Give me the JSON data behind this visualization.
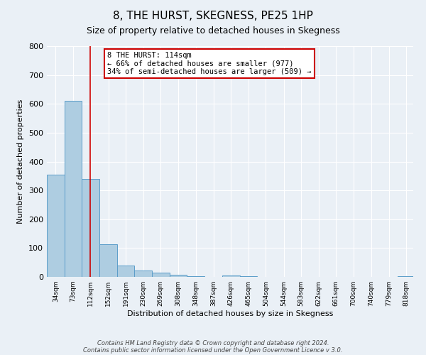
{
  "title": "8, THE HURST, SKEGNESS, PE25 1HP",
  "subtitle": "Size of property relative to detached houses in Skegness",
  "xlabel": "Distribution of detached houses by size in Skegness",
  "ylabel": "Number of detached properties",
  "bar_color": "#aecde1",
  "bar_edge_color": "#5b9dc9",
  "bg_color": "#eaf0f6",
  "grid_color": "#ffffff",
  "vline_x": 112,
  "vline_color": "#cc0000",
  "bin_edges": [
    14.5,
    53.5,
    92.5,
    131.5,
    170.5,
    209.5,
    248.5,
    287.5,
    326.5,
    365.5,
    404.5,
    443.5,
    482.5,
    521.5,
    560.5,
    599.5,
    638.5,
    677.5,
    716.5,
    755.5,
    794.5,
    833.5
  ],
  "bin_heights": [
    355,
    610,
    340,
    113,
    40,
    22,
    14,
    8,
    2,
    0,
    5,
    2,
    0,
    0,
    0,
    0,
    0,
    0,
    0,
    0,
    3
  ],
  "xtick_labels": [
    "34sqm",
    "73sqm",
    "112sqm",
    "152sqm",
    "191sqm",
    "230sqm",
    "269sqm",
    "308sqm",
    "348sqm",
    "387sqm",
    "426sqm",
    "465sqm",
    "504sqm",
    "544sqm",
    "583sqm",
    "622sqm",
    "661sqm",
    "700sqm",
    "740sqm",
    "779sqm",
    "818sqm"
  ],
  "xtick_positions": [
    34,
    73,
    112,
    152,
    191,
    230,
    269,
    308,
    348,
    387,
    426,
    465,
    504,
    544,
    583,
    622,
    661,
    700,
    740,
    779,
    818
  ],
  "xlim": [
    14.5,
    833.5
  ],
  "ylim": [
    0,
    800
  ],
  "yticks": [
    0,
    100,
    200,
    300,
    400,
    500,
    600,
    700,
    800
  ],
  "annotation_text": "8 THE HURST: 114sqm\n← 66% of detached houses are smaller (977)\n34% of semi-detached houses are larger (509) →",
  "annotation_box_color": "#ffffff",
  "annotation_box_edge_color": "#cc0000",
  "footer_line1": "Contains HM Land Registry data © Crown copyright and database right 2024.",
  "footer_line2": "Contains public sector information licensed under the Open Government Licence v 3.0.",
  "title_fontsize": 11,
  "subtitle_fontsize": 9,
  "ylabel_fontsize": 8,
  "xlabel_fontsize": 8,
  "annotation_fontsize": 7.5,
  "ytick_fontsize": 8,
  "xtick_fontsize": 6.5
}
